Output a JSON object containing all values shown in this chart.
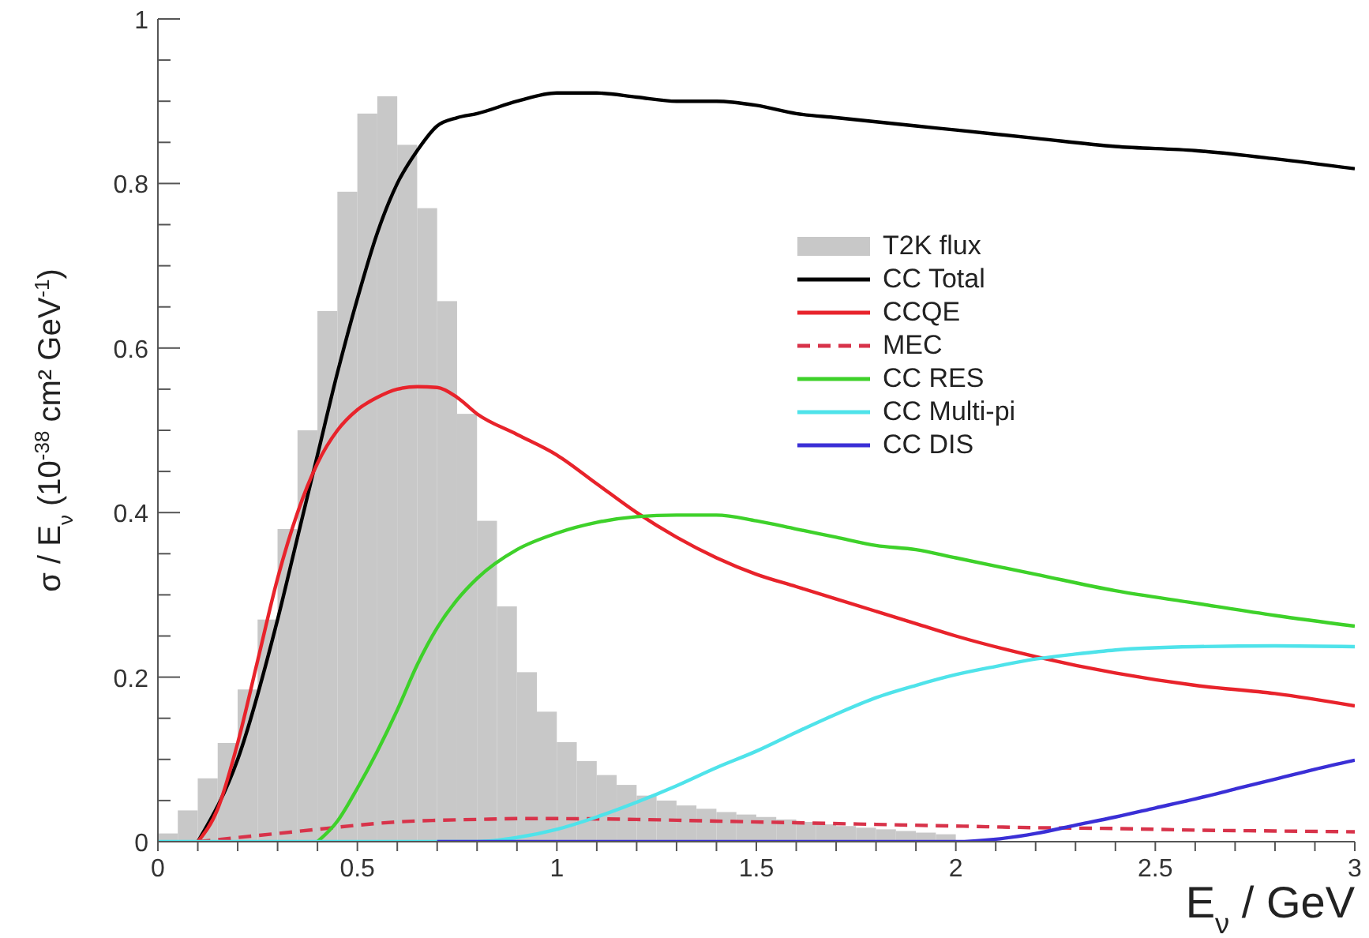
{
  "chart_data": {
    "type": "histogram",
    "xlabel": "E$_{ν}$ / GeV",
    "ylabel": "σ / E$_{ν}$ (10$^{-38}$ cm² GeV$^{-1}$)",
    "xlim": [
      0,
      3
    ],
    "xticks": [
      0,
      {
        "value": 0.1,
        "label": null
      },
      {
        "value": 0.2,
        "label": null
      },
      {
        "value": 0.3,
        "label": null
      },
      {
        "value": 0.4,
        "label": null
      },
      0.5,
      {
        "value": 0.6,
        "label": null
      },
      {
        "value": 0.7,
        "label": null
      },
      {
        "value": 0.8,
        "label": null
      },
      {
        "value": 0.9,
        "label": null
      },
      1,
      {
        "value": 1.1,
        "label": null
      },
      {
        "value": 1.2,
        "label": null
      },
      {
        "value": 1.3,
        "label": null
      },
      {
        "value": 1.4,
        "label": null
      },
      1.5,
      {
        "value": 1.6,
        "label": null
      },
      {
        "value": 1.7,
        "label": null
      },
      {
        "value": 1.8,
        "label": null
      },
      {
        "value": 1.9,
        "label": null
      },
      2,
      {
        "value": 2.1,
        "label": null
      },
      {
        "value": 2.2,
        "label": null
      },
      {
        "value": 2.3,
        "label": null
      },
      {
        "value": 2.4,
        "label": null
      },
      2.5,
      {
        "value": 2.6,
        "label": null
      },
      {
        "value": 2.7,
        "label": null
      },
      {
        "value": 2.8,
        "label": null
      },
      {
        "value": 2.9,
        "label": null
      },
      3
    ],
    "ylim": [
      0,
      1
    ],
    "yticks": [
      0,
      {
        "value": 0.05,
        "label": null
      },
      {
        "value": 0.1,
        "label": null
      },
      {
        "value": 0.15,
        "label": null
      },
      0.2,
      {
        "value": 0.25,
        "label": null
      },
      {
        "value": 0.3,
        "label": null
      },
      {
        "value": 0.35,
        "label": null
      },
      0.4,
      {
        "value": 0.45,
        "label": null
      },
      {
        "value": 0.5,
        "label": null
      },
      {
        "value": 0.55,
        "label": null
      },
      0.6,
      {
        "value": 0.65,
        "label": null
      },
      {
        "value": 0.7,
        "label": null
      },
      {
        "value": 0.75,
        "label": null
      },
      0.8,
      {
        "value": 0.85,
        "label": null
      },
      {
        "value": 0.9,
        "label": null
      },
      {
        "value": 0.95,
        "label": null
      },
      1
    ],
    "grid": false,
    "legend": "top right",
    "series": [
      {
        "name": "T2K flux",
        "color": "#c8c8c8",
        "bins": [
          0,
          0.05,
          0.1,
          0.15,
          0.2,
          0.25,
          0.3,
          0.35,
          0.4,
          0.45,
          0.5,
          0.55,
          0.6,
          0.65,
          0.7,
          0.75,
          0.8,
          0.85,
          0.9,
          0.95,
          1,
          1.05,
          1.1,
          1.15,
          1.2,
          1.25,
          1.3,
          1.35,
          1.4,
          1.45,
          1.5,
          1.55,
          1.6,
          1.65,
          1.7,
          1.75,
          1.8,
          1.85,
          1.9,
          1.95,
          2
        ],
        "values": [
          0.01,
          0.038,
          0.077,
          0.12,
          0.185,
          0.27,
          0.38,
          0.5,
          0.645,
          0.79,
          0.885,
          0.906,
          0.847,
          0.77,
          0.657,
          0.52,
          0.39,
          0.286,
          0.206,
          0.158,
          0.121,
          0.098,
          0.081,
          0.069,
          0.056,
          0.05,
          0.044,
          0.04,
          0.036,
          0.033,
          0.03,
          0.027,
          0.024,
          0.021,
          0.019,
          0.017,
          0.015,
          0.013,
          0.011,
          0.009
        ]
      },
      {
        "type": "line",
        "name": "CC Total",
        "color": "#000000",
        "x": [
          0.1,
          0.2,
          0.3,
          0.35,
          0.4,
          0.45,
          0.5,
          0.55,
          0.6,
          0.65,
          0.7,
          0.75,
          0.8,
          0.9,
          1,
          1.1,
          1.2,
          1.3,
          1.4,
          1.5,
          1.6,
          1.7,
          1.8,
          1.9,
          2,
          2.2,
          2.4,
          2.6,
          2.8,
          3
        ],
        "values": [
          0,
          0.1,
          0.27,
          0.37,
          0.47,
          0.57,
          0.66,
          0.74,
          0.8,
          0.84,
          0.87,
          0.88,
          0.885,
          0.9,
          0.91,
          0.91,
          0.905,
          0.9,
          0.9,
          0.895,
          0.885,
          0.88,
          0.875,
          0.87,
          0.865,
          0.855,
          0.845,
          0.84,
          0.83,
          0.818
        ]
      },
      {
        "type": "line",
        "name": "CCQE",
        "color": "#e8232b",
        "x": [
          0.1,
          0.15,
          0.2,
          0.25,
          0.3,
          0.35,
          0.4,
          0.45,
          0.5,
          0.55,
          0.6,
          0.65,
          0.7,
          0.75,
          0.8,
          0.9,
          1,
          1.1,
          1.2,
          1.3,
          1.4,
          1.5,
          1.6,
          1.7,
          1.8,
          1.9,
          2,
          2.2,
          2.4,
          2.6,
          2.8,
          3
        ],
        "values": [
          0,
          0.04,
          0.12,
          0.22,
          0.32,
          0.4,
          0.46,
          0.5,
          0.525,
          0.54,
          0.55,
          0.553,
          0.552,
          0.54,
          0.52,
          0.495,
          0.47,
          0.435,
          0.4,
          0.37,
          0.345,
          0.325,
          0.31,
          0.295,
          0.28,
          0.265,
          0.25,
          0.225,
          0.205,
          0.19,
          0.18,
          0.165
        ]
      },
      {
        "type": "line",
        "name": "MEC",
        "color": "#d8334a",
        "line_style": "dashed",
        "x": [
          0.1,
          0.2,
          0.3,
          0.4,
          0.5,
          0.6,
          0.7,
          0.8,
          0.9,
          1,
          1.2,
          1.4,
          1.6,
          1.8,
          2,
          2.2,
          2.4,
          2.6,
          2.8,
          3
        ],
        "values": [
          0,
          0.005,
          0.01,
          0.015,
          0.02,
          0.024,
          0.026,
          0.027,
          0.028,
          0.028,
          0.027,
          0.025,
          0.023,
          0.021,
          0.019,
          0.017,
          0.016,
          0.014,
          0.013,
          0.012
        ]
      },
      {
        "type": "line",
        "name": "CC RES",
        "color": "#3ed12a",
        "x": [
          0.4,
          0.45,
          0.5,
          0.55,
          0.6,
          0.65,
          0.7,
          0.75,
          0.8,
          0.9,
          1,
          1.1,
          1.2,
          1.3,
          1.4,
          1.5,
          1.6,
          1.7,
          1.8,
          1.9,
          2,
          2.2,
          2.4,
          2.6,
          2.8,
          3
        ],
        "values": [
          0,
          0.025,
          0.065,
          0.11,
          0.16,
          0.215,
          0.26,
          0.294,
          0.32,
          0.355,
          0.375,
          0.388,
          0.395,
          0.397,
          0.397,
          0.39,
          0.38,
          0.37,
          0.36,
          0.355,
          0.345,
          0.325,
          0.305,
          0.29,
          0.275,
          0.262
        ]
      },
      {
        "type": "line",
        "name": "CC Multi-pi",
        "color": "#4fe3ea",
        "x": [
          0,
          0.8,
          0.9,
          1,
          1.1,
          1.2,
          1.3,
          1.4,
          1.5,
          1.6,
          1.7,
          1.8,
          1.9,
          2,
          2.1,
          2.2,
          2.3,
          2.4,
          2.6,
          2.8,
          3
        ],
        "values": [
          0,
          0,
          0.005,
          0.015,
          0.03,
          0.048,
          0.068,
          0.09,
          0.11,
          0.133,
          0.155,
          0.175,
          0.19,
          0.203,
          0.213,
          0.222,
          0.228,
          0.233,
          0.237,
          0.238,
          0.237
        ]
      },
      {
        "type": "line",
        "name": "CC DIS",
        "color": "#3a2fd6",
        "x": [
          0.7,
          2,
          2.1,
          2.2,
          2.3,
          2.4,
          2.5,
          2.6,
          2.7,
          2.8,
          2.9,
          3
        ],
        "values": [
          0,
          0,
          0.003,
          0.01,
          0.02,
          0.03,
          0.041,
          0.052,
          0.064,
          0.076,
          0.088,
          0.099
        ]
      }
    ]
  }
}
